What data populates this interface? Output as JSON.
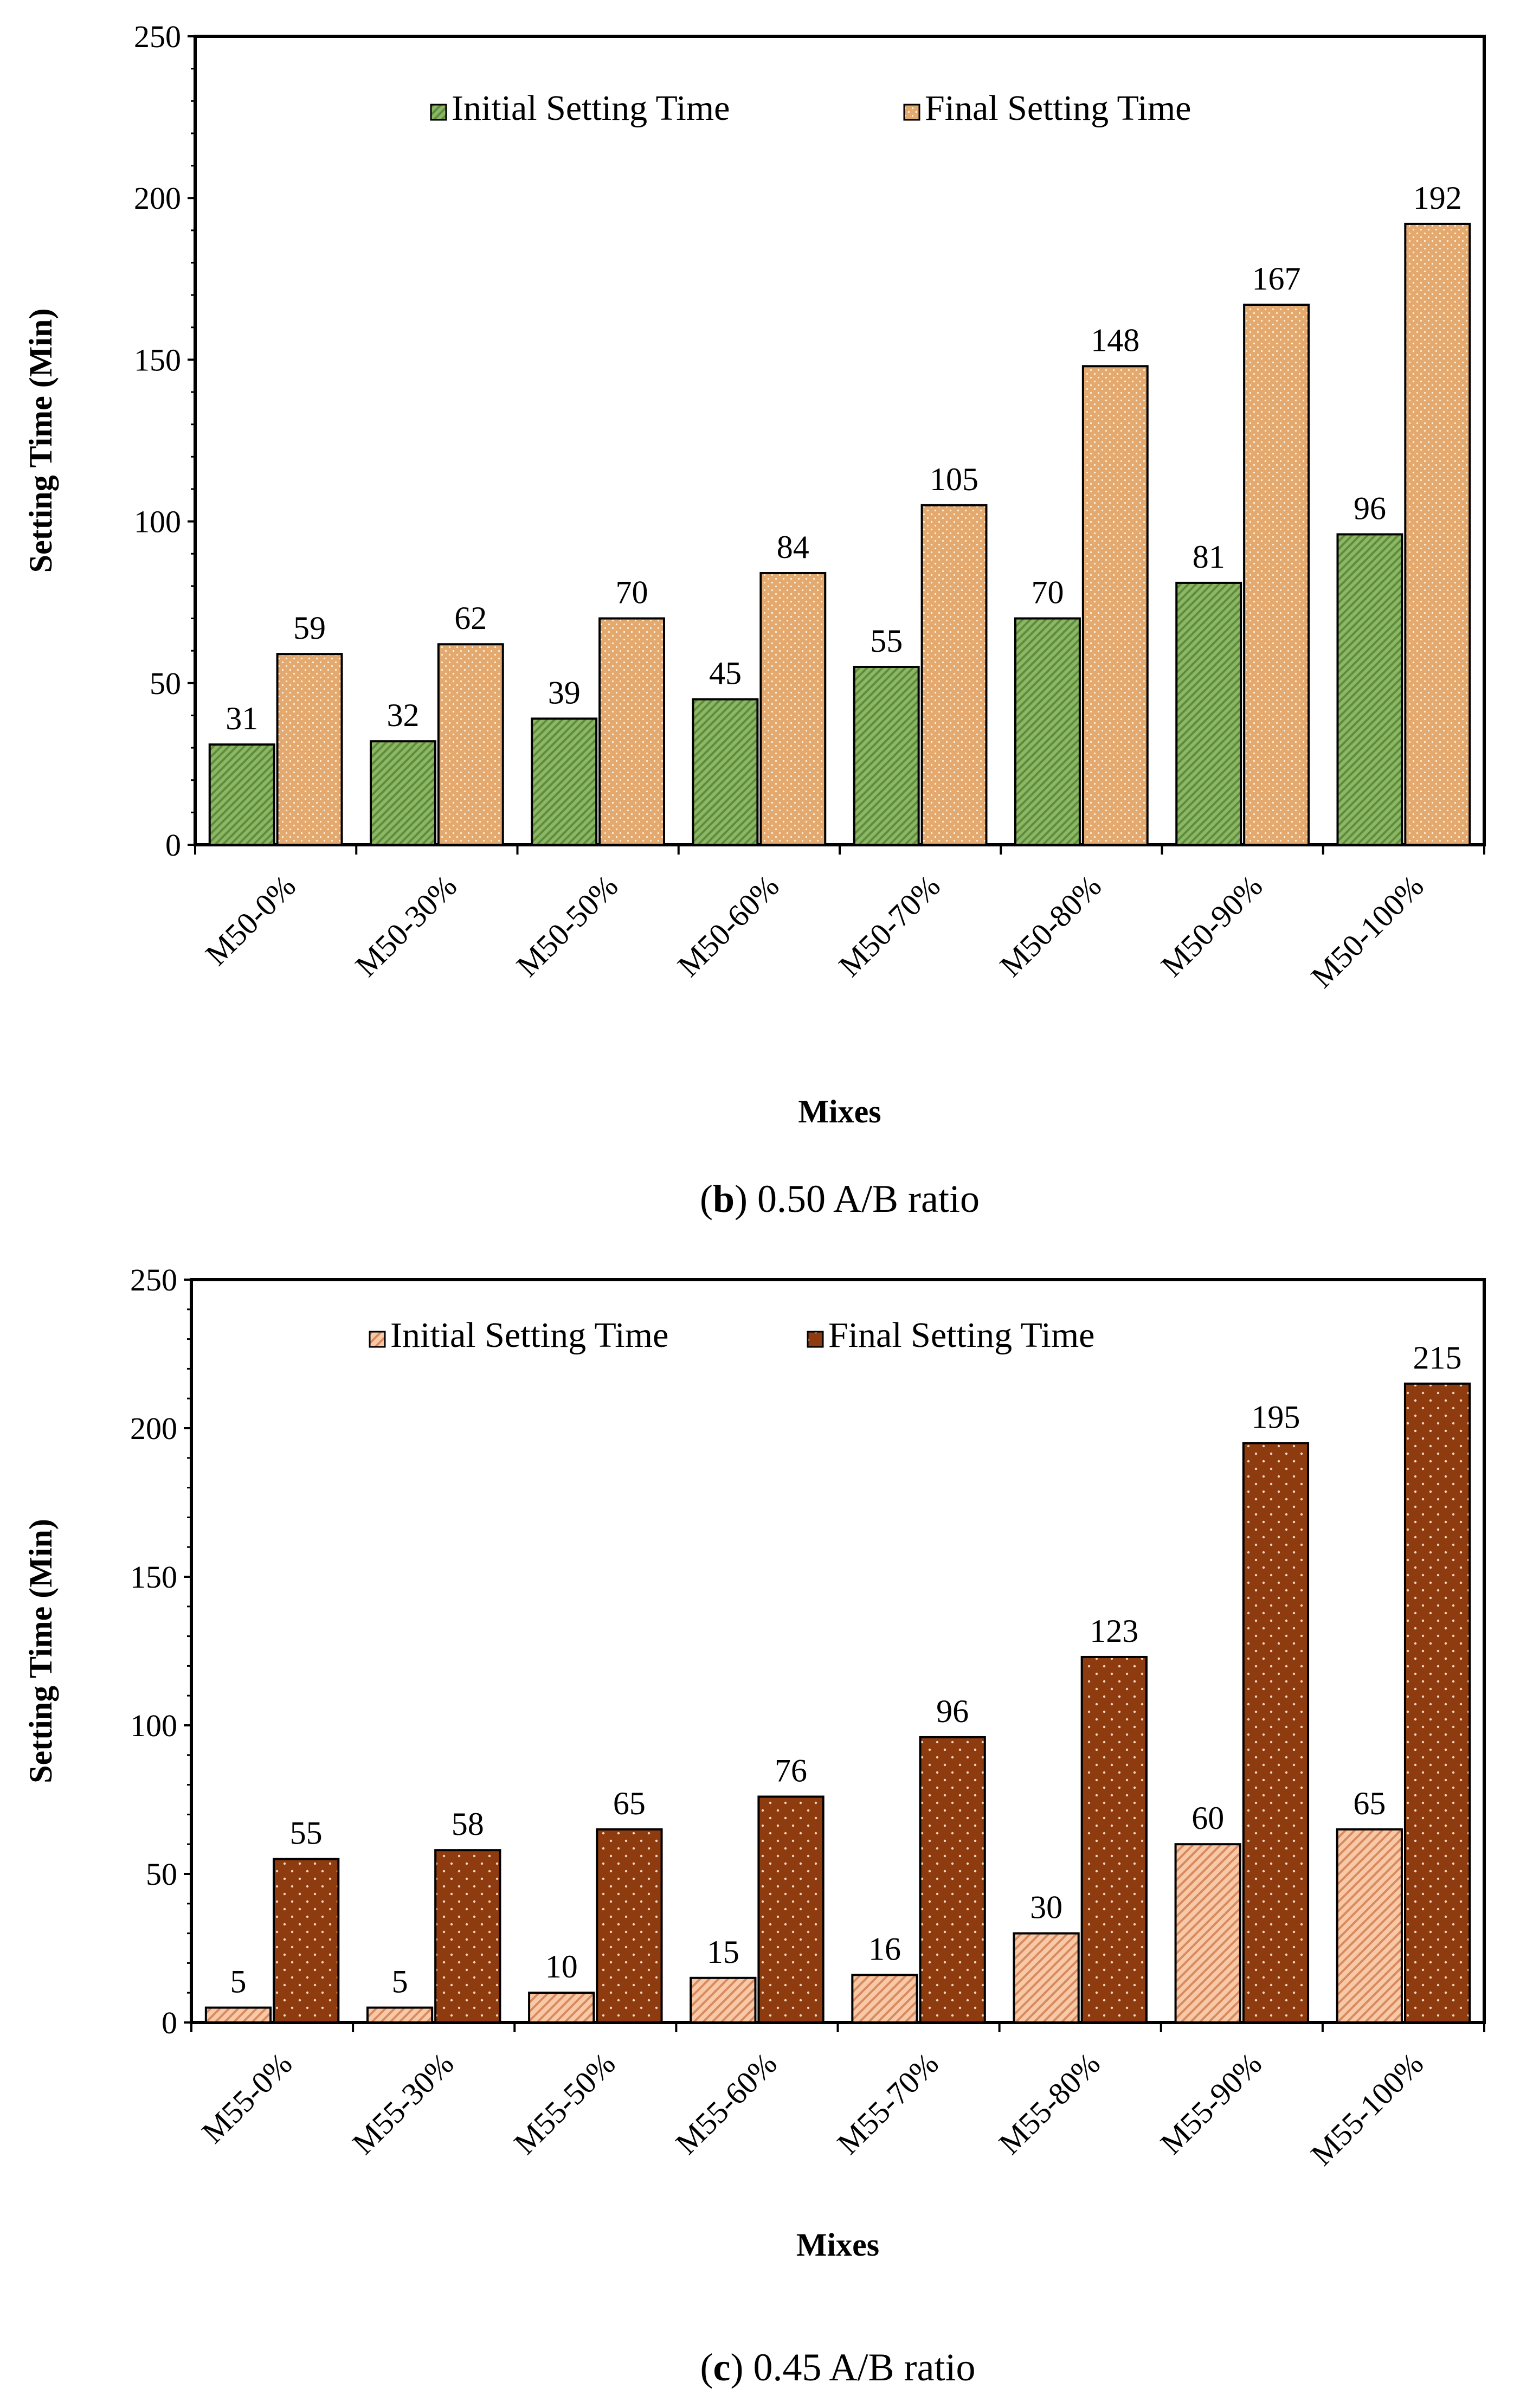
{
  "chart_data": [
    {
      "type": "bar",
      "ylabel": "Setting Time (Min)",
      "xlabel": "Mixes",
      "ylim": [
        0,
        250
      ],
      "yticks": [
        0,
        50,
        100,
        150,
        200,
        250
      ],
      "categories": [
        "M50-0%",
        "M50-30%",
        "M50-50%",
        "M50-60%",
        "M50-70%",
        "M50-80%",
        "M50-90%",
        "M50-100%"
      ],
      "series": [
        {
          "name": "Initial Setting Time",
          "values": [
            31,
            32,
            39,
            45,
            55,
            70,
            81,
            96
          ],
          "color": "#8cb764",
          "pattern": "diagonal"
        },
        {
          "name": "Final Setting Time",
          "values": [
            59,
            62,
            70,
            84,
            105,
            148,
            167,
            192
          ],
          "color": "#e4a96e",
          "pattern": "dots"
        }
      ],
      "caption": {
        "letter": "b",
        "open": "(",
        "close": ")",
        "text": " 0.50 A/B ratio"
      }
    },
    {
      "type": "bar",
      "ylabel": "Setting Time (Min)",
      "xlabel": "Mixes",
      "ylim": [
        0,
        250
      ],
      "yticks": [
        0,
        50,
        100,
        150,
        200,
        250
      ],
      "categories": [
        "M55-0%",
        "M55-30%",
        "M55-50%",
        "M55-60%",
        "M55-70%",
        "M55-80%",
        "M55-90%",
        "M55-100%"
      ],
      "series": [
        {
          "name": "Initial Setting Time",
          "values": [
            5,
            5,
            10,
            15,
            16,
            30,
            60,
            65
          ],
          "color": "#f8c9a8",
          "pattern": "diagonal"
        },
        {
          "name": "Final Setting Time",
          "values": [
            55,
            58,
            65,
            76,
            96,
            123,
            195,
            215
          ],
          "color": "#8e3b0f",
          "pattern": "dots"
        }
      ],
      "caption": {
        "letter": "c",
        "open": "(",
        "close": ")",
        "text": " 0.45 A/B ratio"
      }
    }
  ]
}
